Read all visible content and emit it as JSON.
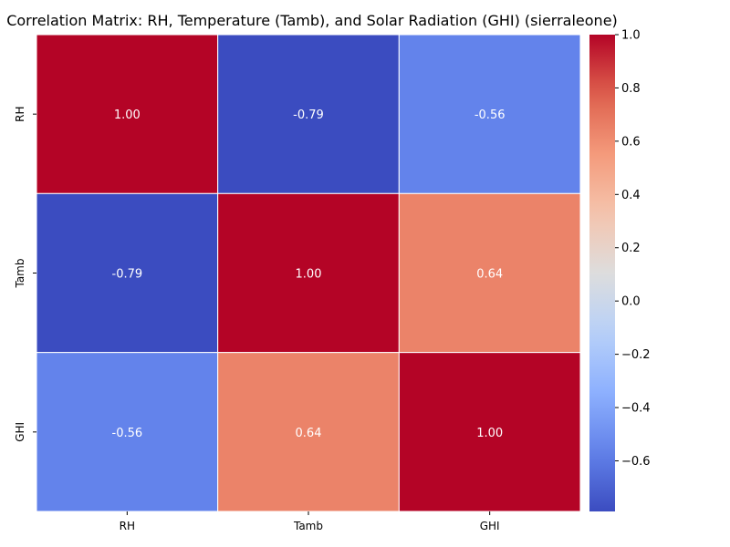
{
  "chart_data": {
    "type": "heatmap",
    "title": "Correlation Matrix: RH, Temperature (Tamb), and Solar Radiation (GHI) (sierraleone)",
    "x_categories": [
      "RH",
      "Tamb",
      "GHI"
    ],
    "y_categories": [
      "RH",
      "Tamb",
      "GHI"
    ],
    "values": [
      [
        1.0,
        -0.79,
        -0.56
      ],
      [
        -0.79,
        1.0,
        0.64
      ],
      [
        -0.56,
        0.64,
        1.0
      ]
    ],
    "value_format": "2 decimals",
    "annotations": true,
    "colormap": "coolwarm",
    "color_range": [
      -0.79,
      1.0
    ],
    "colorbar": {
      "ticks": [
        "1.0",
        "0.8",
        "0.6",
        "0.4",
        "0.2",
        "0.0",
        "−0.2",
        "−0.4",
        "−0.6"
      ],
      "tick_values": [
        1.0,
        0.8,
        0.6,
        0.4,
        0.2,
        0.0,
        -0.2,
        -0.4,
        -0.6
      ],
      "placement": "right"
    },
    "grid": true
  }
}
